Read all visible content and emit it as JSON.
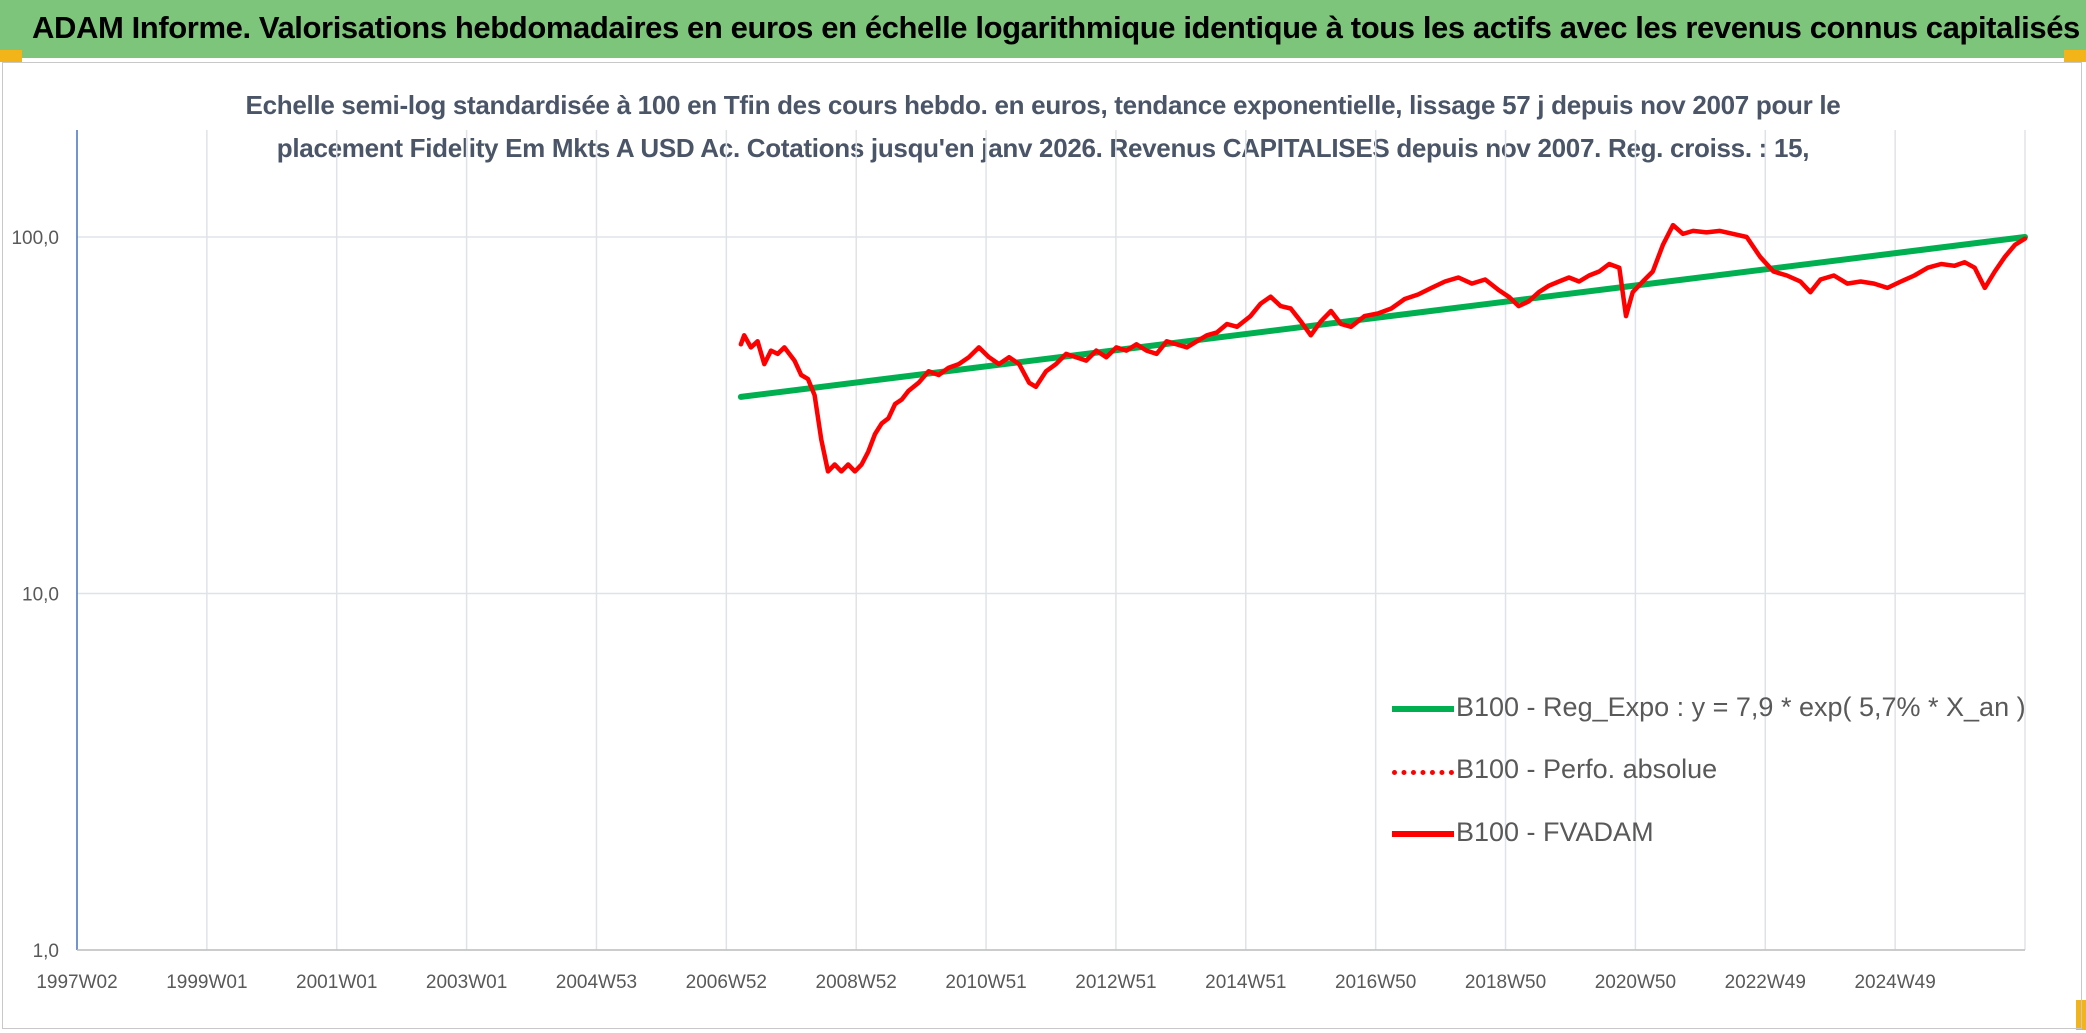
{
  "banner": {
    "title": "ADAM Informe. Valorisations hebdomadaires en euros en échelle logarithmique identique à tous les actifs avec les revenus connus capitalisés",
    "color": "#7dc57a",
    "corner_color": "#f2b418"
  },
  "chart_data": {
    "type": "line",
    "title_line1": "Echelle semi-log standardisée à 100 en Tfin des cours hebdo. en euros, tendance exponentielle, lissage 57 j depuis nov 2007 pour le",
    "title_line2": "placement Fidelity Em Mkts A USD Ac. Cotations jusqu'en janv 2026. Revenus CAPITALISES depuis nov 2007. Reg. croiss. : 15,",
    "y_scale": "log",
    "ylim": [
      1,
      100
    ],
    "y_ticks": [
      "1,0",
      "10,0",
      "100,0"
    ],
    "x_ticks": [
      "1997W02",
      "1999W01",
      "2001W01",
      "2003W01",
      "2004W53",
      "2006W52",
      "2008W52",
      "2010W51",
      "2012W51",
      "2014W51",
      "2016W50",
      "2018W50",
      "2020W50",
      "2022W49",
      "2024W49"
    ],
    "xlim": [
      1997.0,
      2026.05
    ],
    "grid": true,
    "legend_position": "lower-right",
    "series": [
      {
        "name": "B100 - Reg_Expo : y = 7,9 * exp( 5,7% *  X_an )",
        "color": "#00b050",
        "style": "solid",
        "x": [
          2006.9,
          2026.05
        ],
        "y": [
          35.6,
          100.0
        ]
      },
      {
        "name": "B100 - Perfo. absolue",
        "color": "#ff0000",
        "style": "dotted",
        "x": [],
        "y": []
      },
      {
        "name": "B100 - FVADAM",
        "color": "#ff0000",
        "style": "solid",
        "x": [
          2006.9,
          2006.95,
          2007.05,
          2007.15,
          2007.25,
          2007.35,
          2007.45,
          2007.55,
          2007.7,
          2007.8,
          2007.9,
          2008.0,
          2008.1,
          2008.2,
          2008.3,
          2008.4,
          2008.5,
          2008.6,
          2008.7,
          2008.8,
          2008.9,
          2009.0,
          2009.1,
          2009.2,
          2009.3,
          2009.4,
          2009.55,
          2009.7,
          2009.85,
          2010.0,
          2010.15,
          2010.3,
          2010.45,
          2010.6,
          2010.75,
          2010.9,
          2011.05,
          2011.2,
          2011.3,
          2011.45,
          2011.6,
          2011.75,
          2011.9,
          2012.05,
          2012.2,
          2012.35,
          2012.5,
          2012.65,
          2012.8,
          2012.95,
          2013.1,
          2013.25,
          2013.4,
          2013.55,
          2013.7,
          2013.85,
          2014.0,
          2014.15,
          2014.3,
          2014.5,
          2014.65,
          2014.8,
          2014.95,
          2015.1,
          2015.25,
          2015.4,
          2015.55,
          2015.7,
          2015.85,
          2016.0,
          2016.2,
          2016.4,
          2016.6,
          2016.8,
          2017.0,
          2017.2,
          2017.4,
          2017.6,
          2017.8,
          2018.0,
          2018.2,
          2018.35,
          2018.5,
          2018.65,
          2018.8,
          2018.95,
          2019.1,
          2019.25,
          2019.4,
          2019.55,
          2019.7,
          2019.85,
          2020.0,
          2020.1,
          2020.2,
          2020.35,
          2020.5,
          2020.65,
          2020.8,
          2020.95,
          2021.1,
          2021.3,
          2021.5,
          2021.7,
          2021.9,
          2022.1,
          2022.3,
          2022.5,
          2022.7,
          2022.85,
          2023.0,
          2023.2,
          2023.4,
          2023.6,
          2023.8,
          2024.0,
          2024.2,
          2024.4,
          2024.6,
          2024.8,
          2025.0,
          2025.15,
          2025.3,
          2025.45,
          2025.6,
          2025.75,
          2025.9,
          2026.05
        ],
        "y": [
          50,
          53,
          49,
          51,
          44,
          48,
          47,
          49,
          45,
          41,
          40,
          36,
          27,
          22,
          23,
          22,
          23,
          22,
          23,
          25,
          28,
          30,
          31,
          34,
          35,
          37,
          39,
          42,
          41,
          43,
          44,
          46,
          49,
          46,
          44,
          46,
          44,
          39,
          38,
          42,
          44,
          47,
          46,
          45,
          48,
          46,
          49,
          48,
          50,
          48,
          47,
          51,
          50,
          49,
          51,
          53,
          54,
          57,
          56,
          60,
          65,
          68,
          64,
          63,
          58,
          53,
          58,
          62,
          57,
          56,
          60,
          61,
          63,
          67,
          69,
          72,
          75,
          77,
          74,
          76,
          71,
          68,
          64,
          66,
          70,
          73,
          75,
          77,
          75,
          78,
          80,
          84,
          82,
          60,
          70,
          75,
          80,
          95,
          108,
          102,
          104,
          103,
          104,
          102,
          100,
          88,
          80,
          78,
          75,
          70,
          76,
          78,
          74,
          75,
          74,
          72,
          75,
          78,
          82,
          84,
          83,
          85,
          82,
          72,
          80,
          88,
          95,
          99
        ]
      }
    ]
  }
}
